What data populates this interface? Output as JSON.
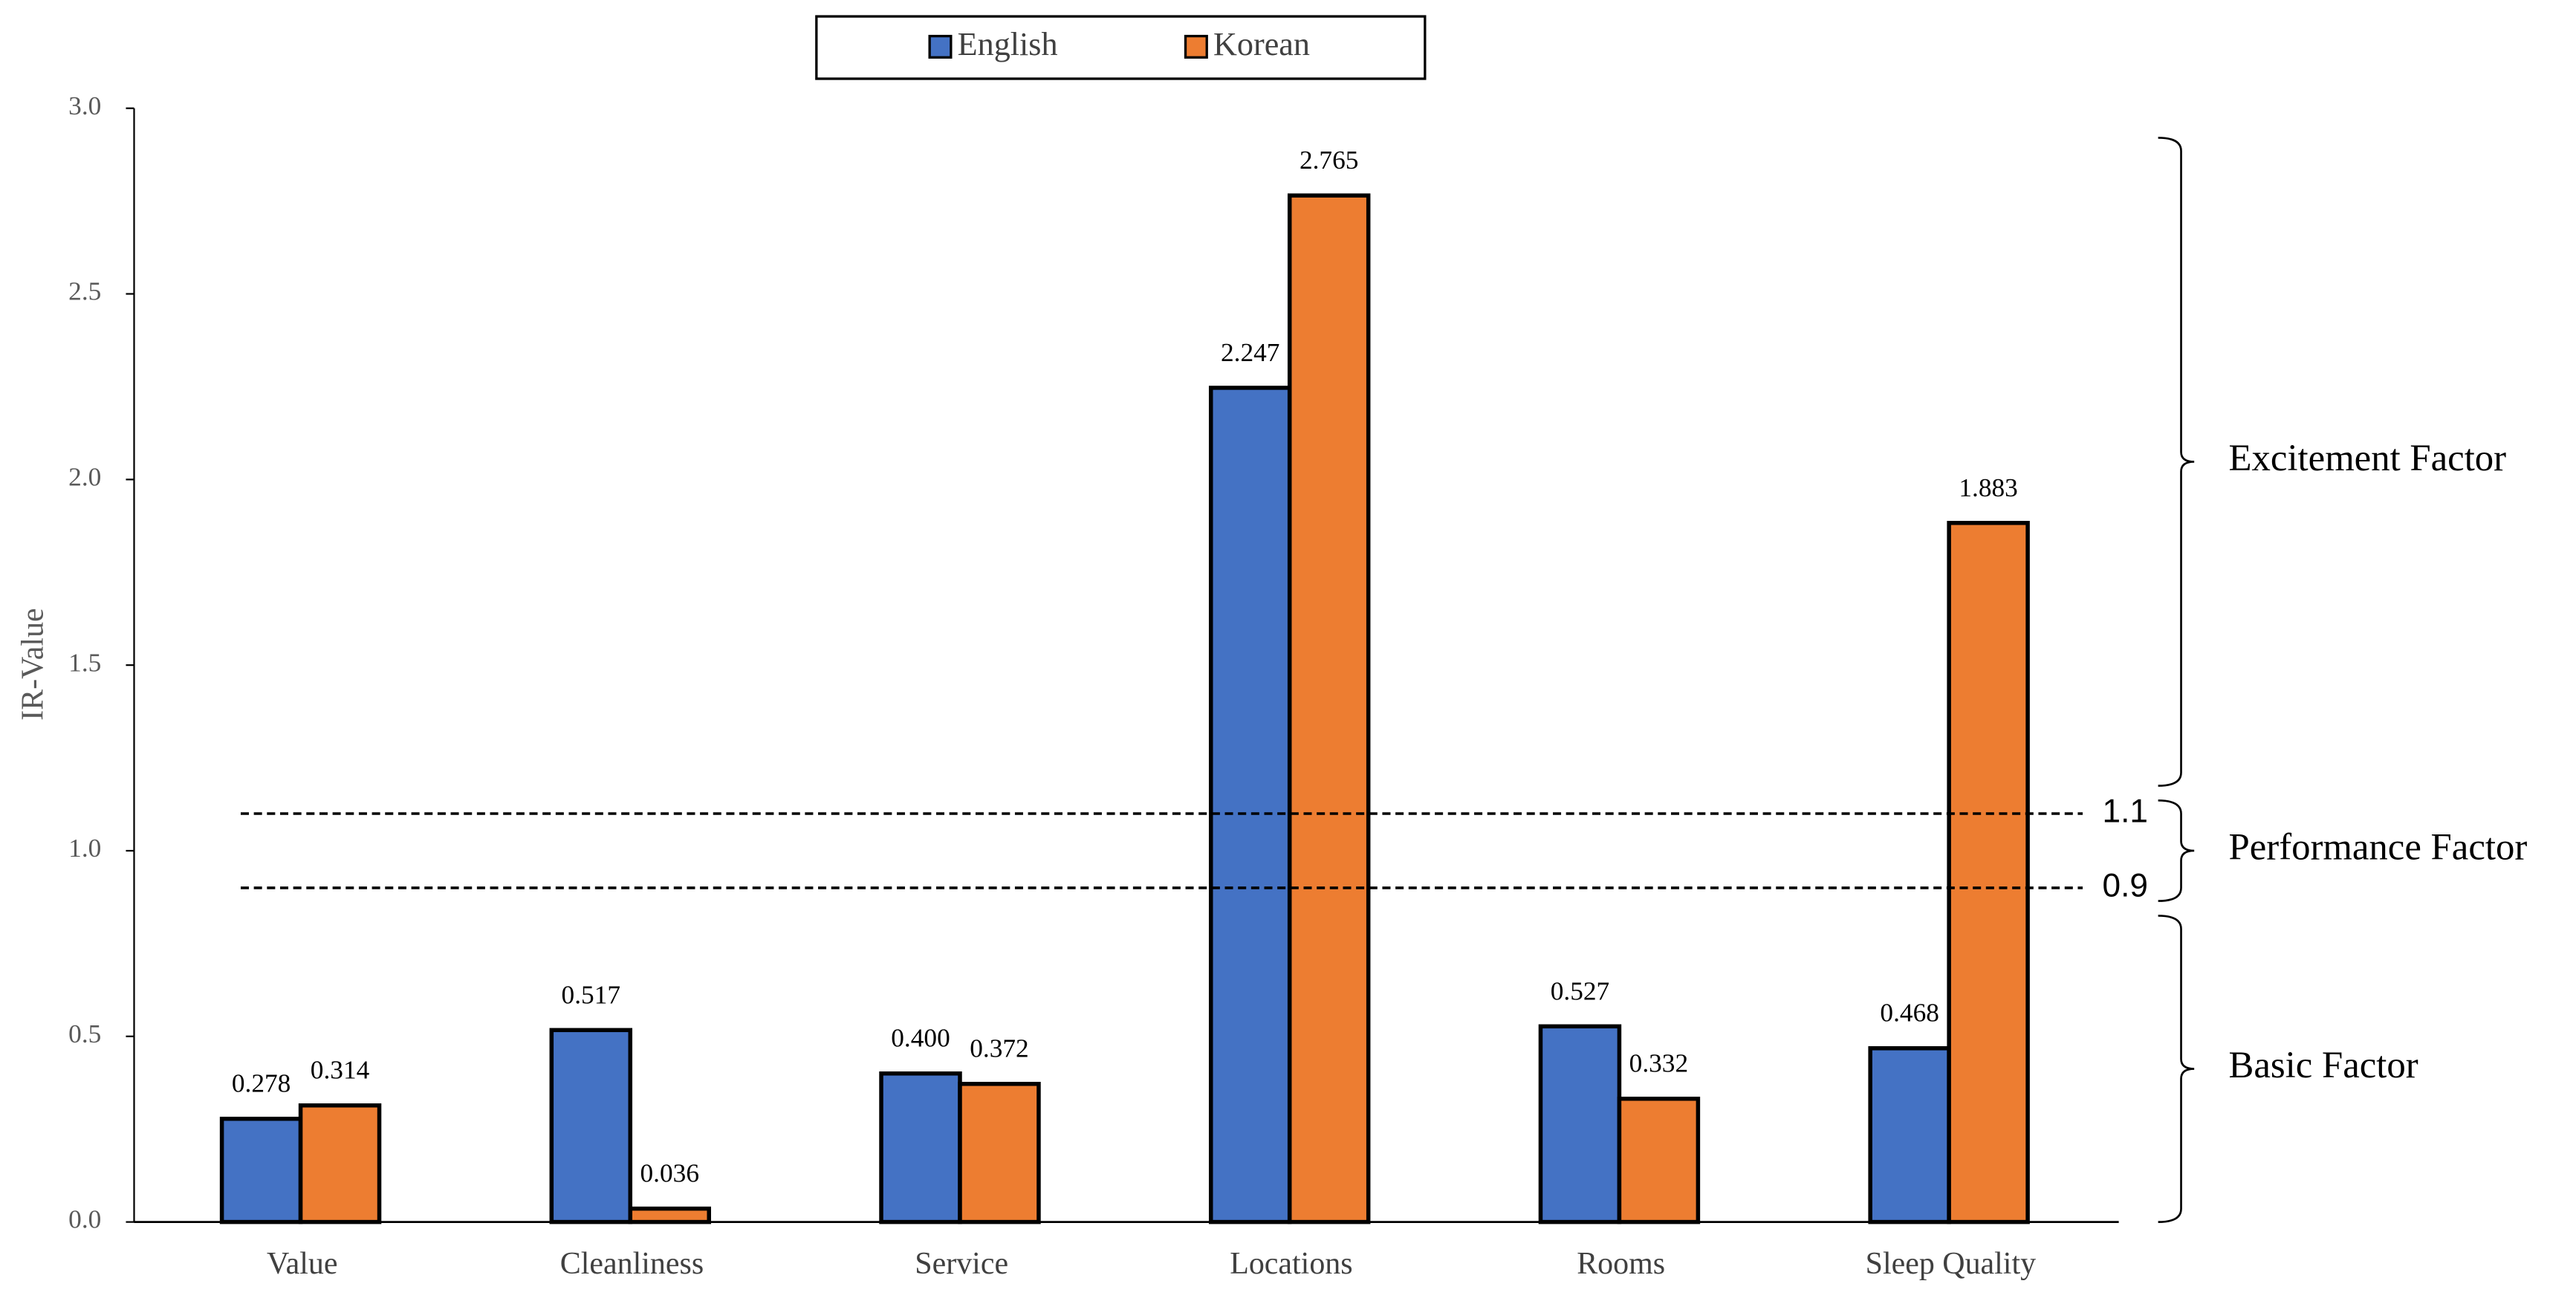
{
  "chart_data": {
    "type": "bar",
    "y_label": "IR-Value",
    "categories": [
      "Value",
      "Cleanliness",
      "Service",
      "Locations",
      "Rooms",
      "Sleep Quality"
    ],
    "series": [
      {
        "name": "English",
        "color": "#4472c4",
        "values": [
          0.278,
          0.517,
          0.4,
          2.247,
          0.527,
          0.468
        ],
        "value_labels": [
          "0.278",
          "0.517",
          "0.400",
          "2.247",
          "0.527",
          "0.468"
        ]
      },
      {
        "name": "Korean",
        "color": "#ed7d31",
        "values": [
          0.314,
          0.036,
          0.372,
          2.765,
          0.332,
          1.883
        ],
        "value_labels": [
          "0.314",
          "0.036",
          "0.372",
          "2.765",
          "0.332",
          "1.883"
        ]
      }
    ],
    "ylim": [
      0,
      3
    ],
    "yticks": [
      {
        "value": 0,
        "label": "0.0"
      },
      {
        "value": 0.5,
        "label": "0.5"
      },
      {
        "value": 1,
        "label": "1.0"
      },
      {
        "value": 1.5,
        "label": "1.5"
      },
      {
        "value": 2,
        "label": "2.0"
      },
      {
        "value": 2.5,
        "label": "2.5"
      },
      {
        "value": 3,
        "label": "3.0"
      }
    ],
    "reference_lines": [
      1.1,
      0.9
    ],
    "annotations": [
      "Excitement Factor",
      "Performance Factor",
      "Basic Factor"
    ],
    "legend": "top"
  }
}
